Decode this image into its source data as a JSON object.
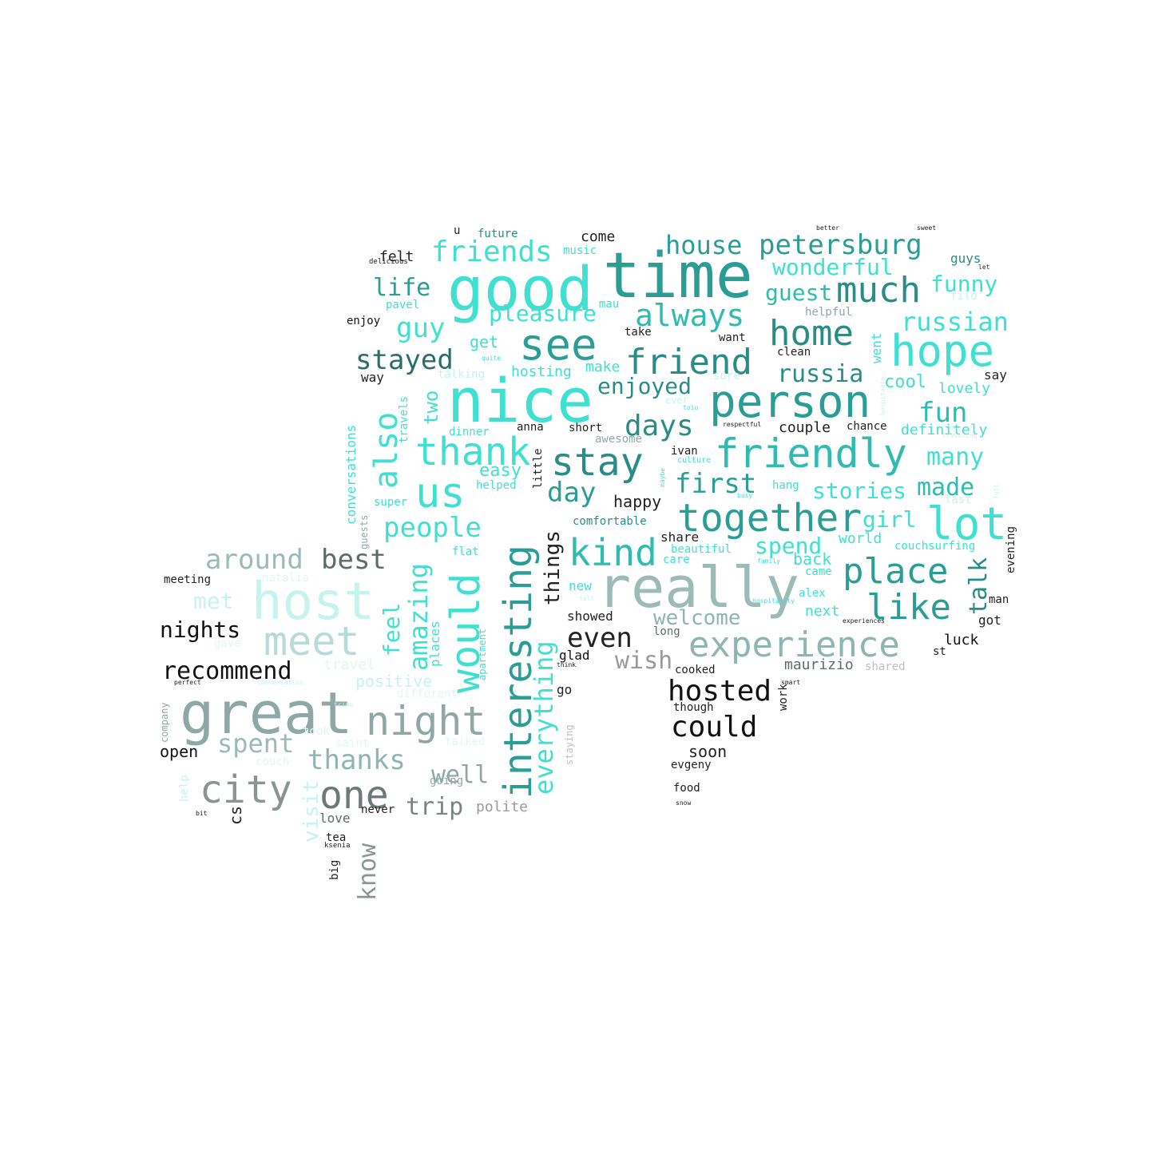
{
  "words": [
    {
      "text": "time",
      "color": "#2a9d95",
      "size": "xl"
    },
    {
      "text": "good",
      "color": "#40e0d0",
      "size": "xl"
    },
    {
      "text": "nice",
      "color": "#40e0d0",
      "size": "xl"
    },
    {
      "text": "really",
      "color": "#9cbab6",
      "size": "xl"
    },
    {
      "text": "host",
      "color": "#c6f3ee",
      "size": "xl"
    },
    {
      "text": "great",
      "color": "#8fa8a6",
      "size": "xl"
    },
    {
      "text": "person",
      "color": "#2a9d95",
      "size": "l"
    },
    {
      "text": "see",
      "color": "#2a9d95",
      "size": "l"
    },
    {
      "text": "hope",
      "color": "#40e0d0",
      "size": "l"
    },
    {
      "text": "friendly",
      "color": "#2ebcb0",
      "size": "l"
    },
    {
      "text": "stay",
      "color": "#2a8c86",
      "size": "l"
    },
    {
      "text": "thank",
      "color": "#40e0d0",
      "size": "l"
    },
    {
      "text": "us",
      "color": "#40e0d0",
      "size": "l"
    },
    {
      "text": "lot",
      "color": "#40e0d0",
      "size": "l"
    },
    {
      "text": "together",
      "color": "#2a9d95",
      "size": "l"
    },
    {
      "text": "interesting",
      "color": "#2a9d95",
      "size": "l"
    },
    {
      "text": "would",
      "color": "#40e0d0",
      "size": "l"
    },
    {
      "text": "meet",
      "color": "#b7dcd8",
      "size": "l"
    },
    {
      "text": "night",
      "color": "#8fa8a6",
      "size": "l"
    },
    {
      "text": "city",
      "color": "#8a9493",
      "size": "l"
    },
    {
      "text": "one",
      "color": "#6e7a79",
      "size": "l"
    },
    {
      "text": "experience",
      "color": "#8fb5b1",
      "size": "l"
    },
    {
      "text": "kind",
      "color": "#2ebcb0",
      "size": "l"
    },
    {
      "text": "friend",
      "color": "#2a8c86",
      "size": "l"
    },
    {
      "text": "much",
      "color": "#2a8c86",
      "size": "l"
    },
    {
      "text": "home",
      "color": "#2a8c86",
      "size": "l"
    },
    {
      "text": "place",
      "color": "#2a9d95",
      "size": "l"
    },
    {
      "text": "like",
      "color": "#2a9d95",
      "size": "l"
    },
    {
      "text": "petersburg",
      "color": "#2a9d95",
      "size": "m"
    },
    {
      "text": "house",
      "color": "#2a9d95",
      "size": "m"
    },
    {
      "text": "friends",
      "color": "#40e0d0",
      "size": "m"
    },
    {
      "text": "always",
      "color": "#2ebcb0",
      "size": "m"
    },
    {
      "text": "also",
      "color": "#40e0d0",
      "size": "m"
    },
    {
      "text": "stayed",
      "color": "#2a6e6a",
      "size": "m"
    },
    {
      "text": "first",
      "color": "#2a9d95",
      "size": "m"
    },
    {
      "text": "days",
      "color": "#2a8c86",
      "size": "m"
    },
    {
      "text": "day",
      "color": "#2a9d95",
      "size": "m"
    },
    {
      "text": "people",
      "color": "#40e0d0",
      "size": "m"
    },
    {
      "text": "around",
      "color": "#9cbab6",
      "size": "m"
    },
    {
      "text": "best",
      "color": "#5e6b6a",
      "size": "m"
    },
    {
      "text": "hosted",
      "color": "#111111",
      "size": "m"
    },
    {
      "text": "could",
      "color": "#111111",
      "size": "m"
    },
    {
      "text": "thanks",
      "color": "#8fb5b1",
      "size": "m"
    },
    {
      "text": "recommend",
      "color": "#111111",
      "size": "m"
    },
    {
      "text": "everything",
      "color": "#40e0d0",
      "size": "m"
    },
    {
      "text": "amazing",
      "color": "#40e0d0",
      "size": "m"
    },
    {
      "text": "russian",
      "color": "#40e0d0",
      "size": "m"
    },
    {
      "text": "russia",
      "color": "#2a8c86",
      "size": "m"
    },
    {
      "text": "wonderful",
      "color": "#40e0d0",
      "size": "m"
    },
    {
      "text": "made",
      "color": "#2ebcb0",
      "size": "m"
    },
    {
      "text": "many",
      "color": "#40e0d0",
      "size": "m"
    },
    {
      "text": "fun",
      "color": "#2ebcb0",
      "size": "m"
    },
    {
      "text": "even",
      "color": "#222222",
      "size": "m"
    },
    {
      "text": "wish",
      "color": "#9a9a9a",
      "size": "m"
    },
    {
      "text": "spent",
      "color": "#9cbab6",
      "size": "m"
    },
    {
      "text": "well",
      "color": "#8fa8a6",
      "size": "m"
    },
    {
      "text": "trip",
      "color": "#7a8483",
      "size": "m"
    },
    {
      "text": "know",
      "color": "#8a9493",
      "size": "m"
    },
    {
      "text": "life",
      "color": "#2a9d95",
      "size": "m"
    },
    {
      "text": "guy",
      "color": "#40e0d0",
      "size": "m"
    },
    {
      "text": "pleasure",
      "color": "#40e0d0",
      "size": "m"
    },
    {
      "text": "enjoyed",
      "color": "#2a8c86",
      "size": "m"
    },
    {
      "text": "guest",
      "color": "#2ebcb0",
      "size": "m"
    },
    {
      "text": "funny",
      "color": "#40e0d0",
      "size": "m"
    },
    {
      "text": "stories",
      "color": "#40e0d0",
      "size": "m"
    },
    {
      "text": "girl",
      "color": "#40e0d0",
      "size": "m"
    },
    {
      "text": "spend",
      "color": "#40e0d0",
      "size": "m"
    },
    {
      "text": "talk",
      "color": "#2a8c86",
      "size": "m"
    },
    {
      "text": "welcome",
      "color": "#8fb5b1",
      "size": "m"
    },
    {
      "text": "nights",
      "color": "#111111",
      "size": "m"
    },
    {
      "text": "met",
      "color": "#c6f3ee",
      "size": "m"
    },
    {
      "text": "feel",
      "color": "#40e0d0",
      "size": "m"
    },
    {
      "text": "things",
      "color": "#222222",
      "size": "m"
    },
    {
      "text": "two",
      "color": "#40e0d0",
      "size": "m"
    },
    {
      "text": "visit",
      "color": "#c6f3ee",
      "size": "m"
    },
    {
      "text": "happy",
      "color": "#222222",
      "size": "s"
    },
    {
      "text": "open",
      "color": "#111111",
      "size": "s"
    },
    {
      "text": "soon",
      "color": "#222222",
      "size": "s"
    },
    {
      "text": "cool",
      "color": "#40e0d0",
      "size": "s"
    },
    {
      "text": "maurizio",
      "color": "#5e6b6a",
      "size": "s"
    },
    {
      "text": "positive",
      "color": "#c6f3ee",
      "size": "s"
    },
    {
      "text": "travel",
      "color": "#e0f7f4",
      "size": "s"
    },
    {
      "text": "lovely",
      "color": "#40e0d0",
      "size": "s"
    },
    {
      "text": "definitely",
      "color": "#40e0d0",
      "size": "s"
    },
    {
      "text": "easy",
      "color": "#40e0d0",
      "size": "s"
    },
    {
      "text": "get",
      "color": "#40e0d0",
      "size": "s"
    },
    {
      "text": "hosting",
      "color": "#40e0d0",
      "size": "s"
    },
    {
      "text": "make",
      "color": "#40e0d0",
      "size": "s"
    },
    {
      "text": "couple",
      "color": "#222222",
      "size": "s"
    },
    {
      "text": "back",
      "color": "#40e0d0",
      "size": "s"
    },
    {
      "text": "world",
      "color": "#40e0d0",
      "size": "s"
    },
    {
      "text": "next",
      "color": "#40e0d0",
      "size": "s"
    },
    {
      "text": "luck",
      "color": "#111111",
      "size": "s"
    },
    {
      "text": "felt",
      "color": "#222222",
      "size": "s"
    },
    {
      "text": "come",
      "color": "#222222",
      "size": "s"
    },
    {
      "text": "future",
      "color": "#2a8c86",
      "size": "xs"
    },
    {
      "text": "music",
      "color": "#40e0d0",
      "size": "xs"
    },
    {
      "text": "guys",
      "color": "#2a8c86",
      "size": "xs"
    },
    {
      "text": "helpful",
      "color": "#8fa8a6",
      "size": "xs"
    },
    {
      "text": "enjoy",
      "color": "#111111",
      "size": "xs"
    },
    {
      "text": "pavel",
      "color": "#40e0d0",
      "size": "xs"
    },
    {
      "text": "mau",
      "color": "#40e0d0",
      "size": "xs"
    },
    {
      "text": "take",
      "color": "#222222",
      "size": "xs"
    },
    {
      "text": "want",
      "color": "#222222",
      "size": "xs"
    },
    {
      "text": "clean",
      "color": "#222222",
      "size": "xs"
    },
    {
      "text": "went",
      "color": "#40e0d0",
      "size": "xs"
    },
    {
      "text": "filo",
      "color": "#c6f3ee",
      "size": "xs"
    },
    {
      "text": "say",
      "color": "#222222",
      "size": "xs"
    },
    {
      "text": "way",
      "color": "#222222",
      "size": "xs"
    },
    {
      "text": "talking",
      "color": "#c6f3ee",
      "size": "xs"
    },
    {
      "text": "sure",
      "color": "#c6f3ee",
      "size": "xs"
    },
    {
      "text": "ever",
      "color": "#c6f3ee",
      "size": "xs"
    },
    {
      "text": "chance",
      "color": "#222222",
      "size": "xs"
    },
    {
      "text": "dinner",
      "color": "#40e0d0",
      "size": "xs"
    },
    {
      "text": "anna",
      "color": "#222222",
      "size": "xs"
    },
    {
      "text": "short",
      "color": "#222222",
      "size": "xs"
    },
    {
      "text": "awesome",
      "color": "#8fa8a6",
      "size": "xs"
    },
    {
      "text": "ivan",
      "color": "#222222",
      "size": "xs"
    },
    {
      "text": "culture",
      "color": "#40e0d0",
      "size": "xs"
    },
    {
      "text": "helped",
      "color": "#40e0d0",
      "size": "xs"
    },
    {
      "text": "little",
      "color": "#222222",
      "size": "xs"
    },
    {
      "text": "super",
      "color": "#40e0d0",
      "size": "xs"
    },
    {
      "text": "hang",
      "color": "#40e0d0",
      "size": "xs"
    },
    {
      "text": "last",
      "color": "#c6f3ee",
      "size": "xs"
    },
    {
      "text": "comfortable",
      "color": "#2a8c86",
      "size": "xs"
    },
    {
      "text": "share",
      "color": "#222222",
      "size": "xs"
    },
    {
      "text": "beautiful",
      "color": "#40e0d0",
      "size": "xs"
    },
    {
      "text": "couchsurfing",
      "color": "#40e0d0",
      "size": "xs"
    },
    {
      "text": "evening",
      "color": "#222222",
      "size": "xs"
    },
    {
      "text": "care",
      "color": "#40e0d0",
      "size": "xs"
    },
    {
      "text": "came",
      "color": "#40e0d0",
      "size": "xs"
    },
    {
      "text": "alex",
      "color": "#40e0d0",
      "size": "xs"
    },
    {
      "text": "man",
      "color": "#222222",
      "size": "xs"
    },
    {
      "text": "got",
      "color": "#222222",
      "size": "xs"
    },
    {
      "text": "meeting",
      "color": "#222222",
      "size": "xs"
    },
    {
      "text": "natalia",
      "color": "#e0f7f4",
      "size": "xs"
    },
    {
      "text": "flat",
      "color": "#40e0d0",
      "size": "xs"
    },
    {
      "text": "new",
      "color": "#40e0d0",
      "size": "xs"
    },
    {
      "text": "showed",
      "color": "#222222",
      "size": "xs"
    },
    {
      "text": "long",
      "color": "#5e6b6a",
      "size": "xs"
    },
    {
      "text": "gave",
      "color": "#e0f7f4",
      "size": "xs"
    },
    {
      "text": "glad",
      "color": "#111111",
      "size": "xs"
    },
    {
      "text": "cooked",
      "color": "#222222",
      "size": "xs"
    },
    {
      "text": "st",
      "color": "#222222",
      "size": "xs"
    },
    {
      "text": "shared",
      "color": "#c0c0c0",
      "size": "xs"
    },
    {
      "text": "different",
      "color": "#e0f7f4",
      "size": "xs"
    },
    {
      "text": "go",
      "color": "#222222",
      "size": "xs"
    },
    {
      "text": "though",
      "color": "#222222",
      "size": "xs"
    },
    {
      "text": "took",
      "color": "#e0f7f4",
      "size": "xs"
    },
    {
      "text": "saint",
      "color": "#e0f7f4",
      "size": "xs"
    },
    {
      "text": "talked",
      "color": "#e0f7f4",
      "size": "xs"
    },
    {
      "text": "couch",
      "color": "#e0f7f4",
      "size": "xs"
    },
    {
      "text": "going",
      "color": "#8fa8a6",
      "size": "xs"
    },
    {
      "text": "evgeny",
      "color": "#222222",
      "size": "xs"
    },
    {
      "text": "food",
      "color": "#222222",
      "size": "xs"
    },
    {
      "text": "polite",
      "color": "#9a9a9a",
      "size": "xs"
    },
    {
      "text": "never",
      "color": "#222222",
      "size": "xs"
    },
    {
      "text": "love",
      "color": "#5e6b6a",
      "size": "xs"
    },
    {
      "text": "tea",
      "color": "#222222",
      "size": "xs"
    },
    {
      "text": "big",
      "color": "#222222",
      "size": "xs"
    },
    {
      "text": "cs",
      "color": "#222222",
      "size": "xs"
    },
    {
      "text": "help",
      "color": "#c6f3ee",
      "size": "xs"
    },
    {
      "text": "company",
      "color": "#8fa8a6",
      "size": "xs"
    },
    {
      "text": "conversations",
      "color": "#40e0d0",
      "size": "xs"
    },
    {
      "text": "guests",
      "color": "#8fa8a6",
      "size": "xs"
    },
    {
      "text": "travels",
      "color": "#40e0d0",
      "size": "xs"
    },
    {
      "text": "places",
      "color": "#40e0d0",
      "size": "xs"
    },
    {
      "text": "apartment",
      "color": "#40e0d0",
      "size": "xs"
    },
    {
      "text": "staying",
      "color": "#c0c0c0",
      "size": "xs"
    },
    {
      "text": "u",
      "color": "#222222",
      "size": "xs"
    },
    {
      "text": "delicious",
      "color": "#222222",
      "size": "xxs"
    },
    {
      "text": "better",
      "color": "#222222",
      "size": "xxs"
    },
    {
      "text": "sweet",
      "color": "#222222",
      "size": "xxs"
    },
    {
      "text": "let",
      "color": "#222222",
      "size": "xxs"
    },
    {
      "text": "quite",
      "color": "#40e0d0",
      "size": "xxs"
    },
    {
      "text": "respectful",
      "color": "#222222",
      "size": "xxs"
    },
    {
      "text": "traveling",
      "color": "#c6f3ee",
      "size": "xxs"
    },
    {
      "text": "full",
      "color": "#c6f3ee",
      "size": "xxs"
    },
    {
      "text": "family",
      "color": "#40e0d0",
      "size": "xxs"
    },
    {
      "text": "hospitality",
      "color": "#40e0d0",
      "size": "xxs"
    },
    {
      "text": "experiences",
      "color": "#222222",
      "size": "xxs"
    },
    {
      "text": "smart",
      "color": "#222222",
      "size": "xxs"
    },
    {
      "text": "work",
      "color": "#222222",
      "size": "xxs"
    },
    {
      "text": "think",
      "color": "#222222",
      "size": "xxs"
    },
    {
      "text": "perfect",
      "color": "#222222",
      "size": "xxs"
    },
    {
      "text": "conversation",
      "color": "#c6f3ee",
      "size": "xxs"
    },
    {
      "text": "snow",
      "color": "#222222",
      "size": "xxs"
    },
    {
      "text": "bit",
      "color": "#222222",
      "size": "xxs"
    },
    {
      "text": "tell",
      "color": "#c6f3ee",
      "size": "xxs"
    },
    {
      "text": "busy",
      "color": "#40e0d0",
      "size": "xxs"
    },
    {
      "text": "ksenia",
      "color": "#222222",
      "size": "xxs"
    },
    {
      "text": "maybe",
      "color": "#40e0d0",
      "size": "xxs"
    },
    {
      "text": "trina",
      "color": "#c6f3ee",
      "size": "xxs"
    },
    {
      "text": "toio",
      "color": "#40e0d0",
      "size": "xxs"
    },
    {
      "text": "hospitable",
      "color": "#c6f3ee",
      "size": "xxs"
    }
  ]
}
